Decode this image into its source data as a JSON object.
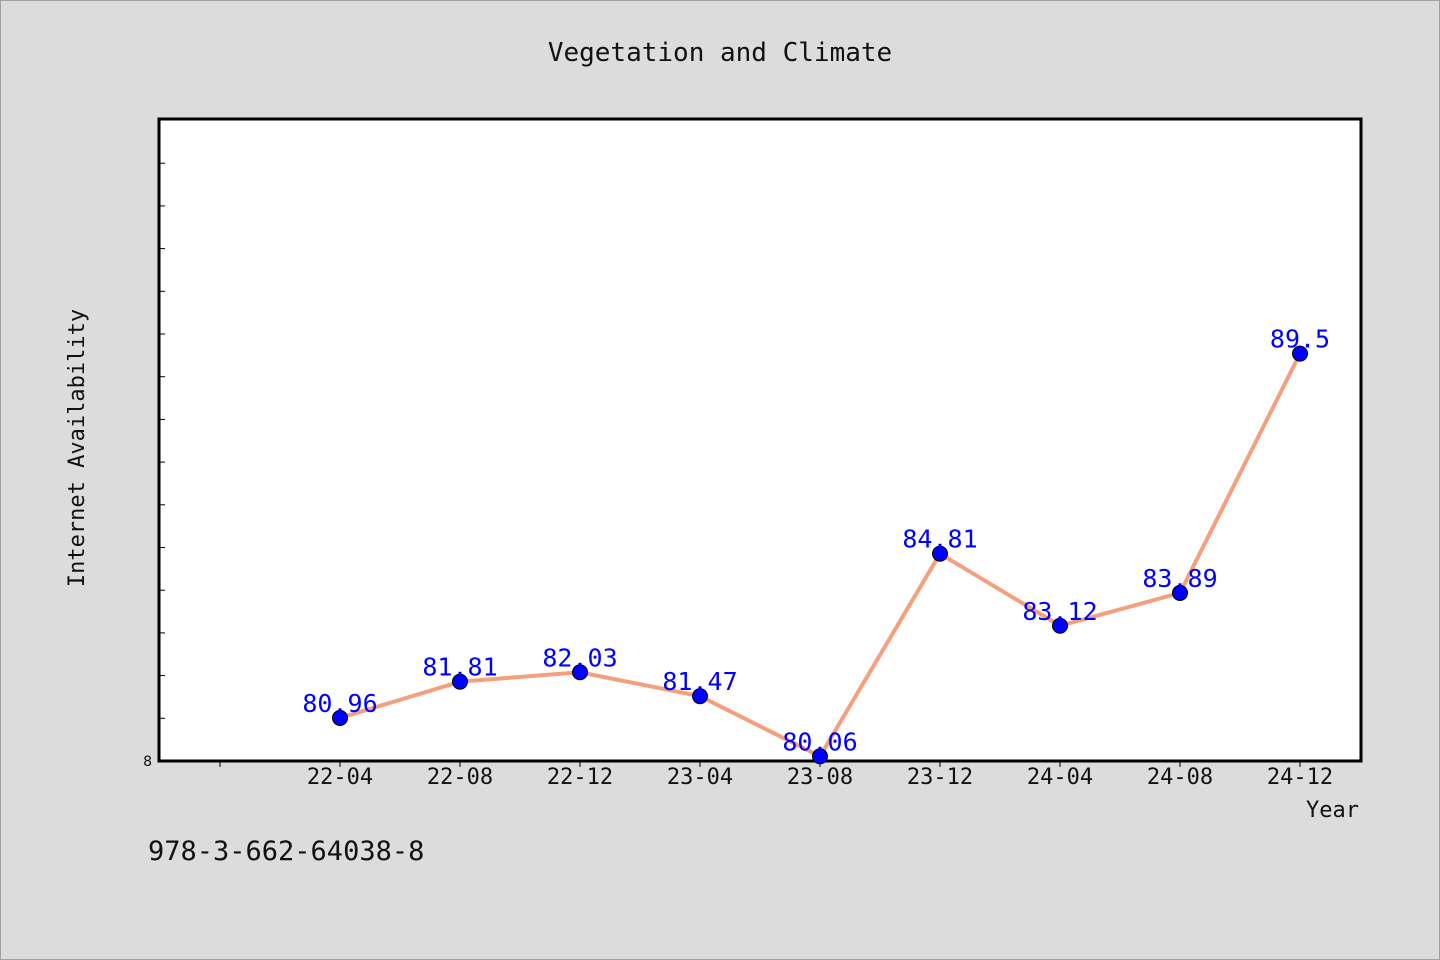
{
  "chart_data": {
    "type": "line",
    "title": "Vegetation and Climate",
    "xlabel": "Year",
    "ylabel": "Internet Availability",
    "categories": [
      "22-04",
      "22-08",
      "22-12",
      "23-04",
      "23-08",
      "23-12",
      "24-04",
      "24-08",
      "24-12"
    ],
    "series": [
      {
        "values": [
          80.96,
          81.81,
          82.03,
          81.47,
          80.06,
          84.81,
          83.12,
          83.89,
          89.5
        ]
      }
    ],
    "data_labels": [
      "80.96",
      "81.81",
      "82.03",
      "81.47",
      "80.06",
      "84.81",
      "83.12",
      "83.89",
      "89.5"
    ],
    "ylim": [
      79.95,
      95.0
    ],
    "y_tick_labels": [
      "8"
    ],
    "grid": false,
    "legend": "none",
    "colors": {
      "line": "#f4a07e",
      "marker": "#0000ff",
      "label": "#0000ff",
      "plot_bg": "#ffffff",
      "page_bg": "#dcdcdc"
    }
  },
  "footer": {
    "isbn": "978-3-662-64038-8"
  }
}
